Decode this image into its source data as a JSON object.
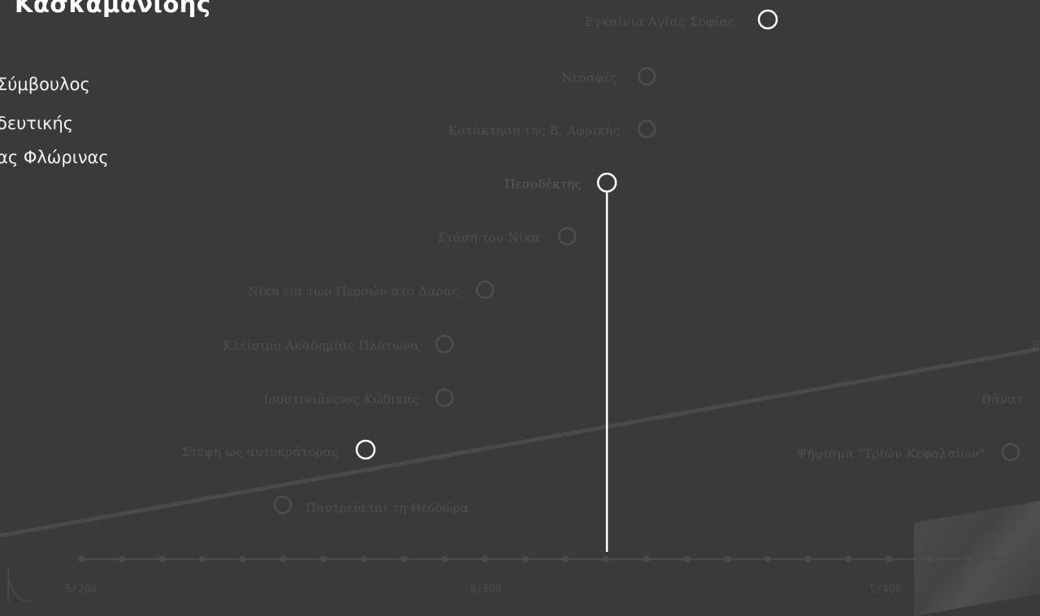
{
  "header": {
    "title": "Κασκαμανίδης",
    "subtitle_lines": [
      "Σύμβουλος",
      "δευτικής",
      "ας Φλώρινας"
    ]
  },
  "timeline": {
    "tick_labels": [
      "5/200",
      "5/300",
      "5/400"
    ],
    "events": [
      {
        "label": "Εγκαίνια Αγίας Σοφίας",
        "highlighted": true
      },
      {
        "label": "Νεοσφές",
        "highlighted": false
      },
      {
        "label": "Κατάκτηση της Β. Αφρικής",
        "highlighted": false
      },
      {
        "label": "Πεσοδέκτης",
        "highlighted": true
      },
      {
        "label": "Στάση του Νίκα",
        "highlighted": false
      },
      {
        "label": "Νίκη επί των Περσών στο Δάρας",
        "highlighted": false
      },
      {
        "label": "Κλείσιμο Ακαδημίας Πλάτωνα",
        "highlighted": false
      },
      {
        "label": "Ιουστινιάνειος Κώδικας",
        "highlighted": false
      },
      {
        "label": "Στέψη ως αυτοκράτορας",
        "highlighted": true
      },
      {
        "label": "Παντρεύεται τη Θεοδώρα",
        "highlighted": false
      },
      {
        "label": "Ψήφισμα \"Τριών Κεφαλαίων\"",
        "highlighted": false
      },
      {
        "label": "Θάνατ",
        "highlighted": false
      },
      {
        "label": "Ε",
        "highlighted": false
      }
    ]
  },
  "colors": {
    "background": "#3a3a3a",
    "accent": "#ffffff",
    "muted": "#505050"
  }
}
